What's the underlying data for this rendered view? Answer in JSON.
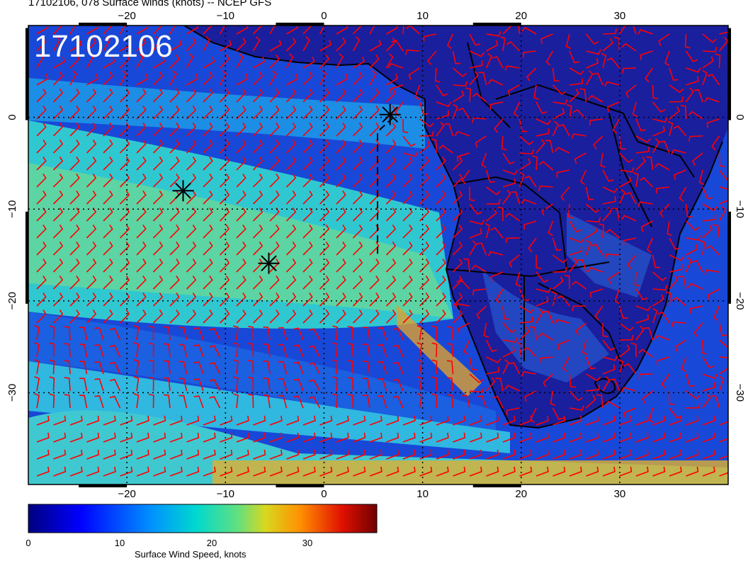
{
  "title": "17102106, 078 Surface winds (knots) -- NCEP GFS",
  "stamp": "17102106",
  "map": {
    "lon_range": [
      -30,
      41
    ],
    "lat_range": [
      -40,
      10
    ],
    "lon_ticks": [
      "−20",
      "−10",
      "0",
      "10",
      "20",
      "30"
    ],
    "lat_ticks": [
      "0",
      "−10",
      "−20",
      "−30"
    ],
    "grid_lines": true,
    "barb_color": "#ff0000",
    "land_color": "#1a1f9e",
    "markers": [
      {
        "name": "asterisk-marker",
        "lon": -14.3,
        "lat": -8.0
      },
      {
        "name": "asterisk-marker",
        "lon": -5.6,
        "lat": -15.9
      },
      {
        "name": "asterisk-marker",
        "lon": 6.7,
        "lat": 0.3
      }
    ]
  },
  "colorbar": {
    "label": "Surface Wind Speed, knots",
    "ticks": [
      "0",
      "10",
      "20",
      "30"
    ],
    "range": [
      0,
      38
    ],
    "colors": [
      "#000080",
      "#0000ff",
      "#0080ff",
      "#00d0d0",
      "#40e0a0",
      "#c8d820",
      "#ff9000",
      "#e02000",
      "#800000"
    ]
  }
}
